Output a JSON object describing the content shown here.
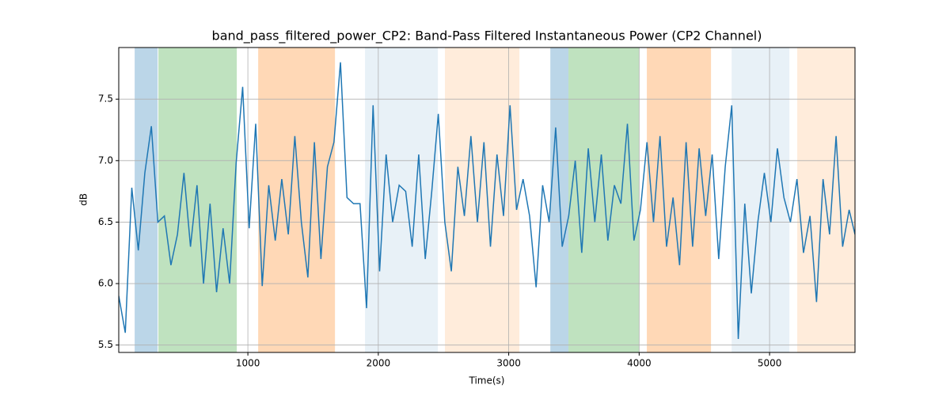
{
  "chart_data": {
    "type": "line",
    "title": "band_pass_filtered_power_CP2: Band-Pass Filtered Instantaneous Power (CP2 Channel)",
    "xlabel": "Time(s)",
    "ylabel": "dB",
    "color": "#1f77b4",
    "grid": true,
    "xlim": [
      10,
      5655
    ],
    "ylim": [
      5.44,
      7.92
    ],
    "xticks": [
      1000,
      2000,
      3000,
      4000,
      5000
    ],
    "yticks": [
      5.5,
      {
        "value": 6,
        "label": "6.0"
      },
      6.5,
      {
        "value": 7,
        "label": "7.0"
      },
      7.5
    ],
    "spans": [
      {
        "start": 132,
        "end": 308,
        "color": "#1f77b44d"
      },
      {
        "start": 314,
        "end": 915,
        "color": "#2ca02c4d"
      },
      {
        "start": 1079,
        "end": 1668,
        "color": "#ff7f0e4d"
      },
      {
        "start": 1898,
        "end": 2457,
        "color": "#1f77b41a"
      },
      {
        "start": 2511,
        "end": 3082,
        "color": "#ff7f0e26"
      },
      {
        "start": 3319,
        "end": 3458,
        "color": "#1f77b44d"
      },
      {
        "start": 3458,
        "end": 3998,
        "color": "#2ca02c4d"
      },
      {
        "start": 4059,
        "end": 4551,
        "color": "#ff7f0e4d"
      },
      {
        "start": 4709,
        "end": 5152,
        "color": "#1f77b41a"
      },
      {
        "start": 5212,
        "end": 5655,
        "color": "#ff7f0e26"
      }
    ],
    "x": [
      10,
      60,
      110,
      160,
      210,
      260,
      310,
      360,
      410,
      460,
      510,
      560,
      610,
      660,
      710,
      760,
      810,
      860,
      910,
      960,
      1010,
      1060,
      1110,
      1160,
      1210,
      1260,
      1310,
      1360,
      1410,
      1460,
      1510,
      1560,
      1610,
      1660,
      1710,
      1760,
      1810,
      1860,
      1910,
      1960,
      2010,
      2060,
      2110,
      2160,
      2210,
      2260,
      2310,
      2360,
      2410,
      2460,
      2510,
      2560,
      2610,
      2660,
      2710,
      2760,
      2810,
      2860,
      2910,
      2960,
      3010,
      3060,
      3110,
      3160,
      3210,
      3260,
      3310,
      3360,
      3410,
      3460,
      3510,
      3560,
      3610,
      3660,
      3710,
      3760,
      3810,
      3860,
      3910,
      3960,
      4010,
      4060,
      4110,
      4160,
      4210,
      4260,
      4310,
      4360,
      4410,
      4460,
      4510,
      4560,
      4610,
      4660,
      4710,
      4760,
      4810,
      4860,
      4910,
      4960,
      5010,
      5060,
      5110,
      5160,
      5210,
      5260,
      5310,
      5360,
      5410,
      5460,
      5510,
      5560,
      5610,
      5655
    ],
    "values": [
      5.9,
      5.6,
      6.78,
      6.27,
      6.9,
      7.28,
      6.5,
      6.55,
      6.15,
      6.4,
      6.9,
      6.3,
      6.8,
      6.0,
      6.65,
      5.93,
      6.45,
      6.0,
      6.98,
      7.6,
      6.45,
      7.3,
      5.98,
      6.8,
      6.35,
      6.85,
      6.4,
      7.2,
      6.5,
      6.05,
      7.15,
      6.2,
      6.95,
      7.15,
      7.8,
      6.7,
      6.65,
      6.65,
      5.8,
      7.45,
      6.1,
      7.05,
      6.5,
      6.8,
      6.75,
      6.3,
      7.05,
      6.2,
      6.75,
      7.38,
      6.5,
      6.1,
      6.95,
      6.55,
      7.2,
      6.5,
      7.15,
      6.3,
      7.05,
      6.55,
      7.45,
      6.6,
      6.85,
      6.55,
      5.97,
      6.8,
      6.5,
      7.27,
      6.3,
      6.55,
      7.0,
      6.25,
      7.1,
      6.5,
      7.05,
      6.35,
      6.8,
      6.65,
      7.3,
      6.35,
      6.6,
      7.15,
      6.5,
      7.2,
      6.3,
      6.7,
      6.15,
      7.15,
      6.3,
      7.1,
      6.55,
      7.05,
      6.2,
      6.95,
      7.45,
      5.55,
      6.65,
      5.92,
      6.5,
      6.9,
      6.5,
      7.1,
      6.7,
      6.5,
      6.85,
      6.25,
      6.55,
      5.85,
      6.85,
      6.4,
      7.2,
      6.3,
      6.6,
      6.4
    ]
  }
}
